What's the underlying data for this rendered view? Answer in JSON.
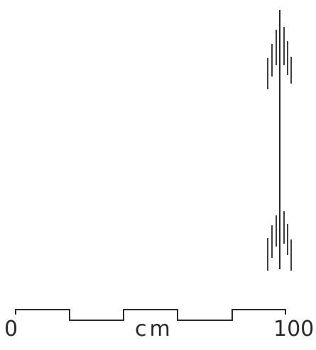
{
  "scale_bar": {
    "start_label": "0",
    "unit_label": "cm",
    "end_label": "100"
  },
  "colors": {
    "ink": "#2a2a2a",
    "background": "#ffffff"
  }
}
